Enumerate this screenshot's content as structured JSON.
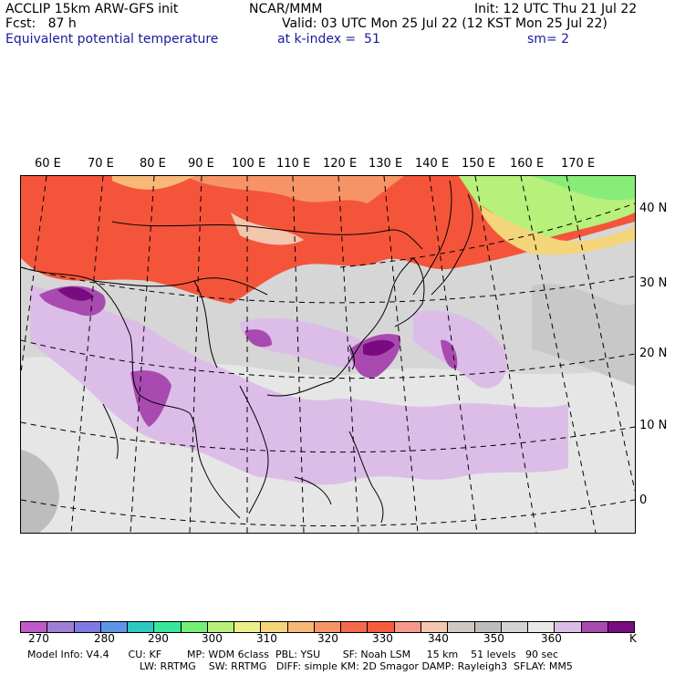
{
  "header": {
    "model": "ACCLIP 15km ARW-GFS init",
    "org": "NCAR/MMM",
    "init": "Init: 12 UTC Thu 21 Jul 22",
    "fcst": "Fcst:   87 h",
    "valid": "Valid: 03 UTC Mon 25 Jul 22 (12 KST Mon 25 Jul 22)",
    "field": "Equivalent potential temperature",
    "level": "at k-index =  51",
    "smooth": "sm= 2"
  },
  "map": {
    "lon_labels": [
      "60 E",
      "70 E",
      "80 E",
      "90 E",
      "100 E",
      "110 E",
      "120 E",
      "130 E",
      "140 E",
      "150 E",
      "160 E",
      "170 E"
    ],
    "lat_labels": [
      "40 N",
      "30 N",
      "20 N",
      "10 N",
      "0"
    ]
  },
  "colorbar": {
    "colors": [
      "#c05ac8",
      "#9f7ed6",
      "#7f79e3",
      "#5f95e6",
      "#2fc8c0",
      "#3ae69b",
      "#76ee76",
      "#b7f07a",
      "#ecf08a",
      "#f5d57a",
      "#f7b878",
      "#f79466",
      "#f46a4a",
      "#f45c3c",
      "#f59a8a",
      "#f3c6ae",
      "#cfc7c2",
      "#bdbdbd",
      "#d3d3d3",
      "#e8e8e8",
      "#dcbde8",
      "#a84ab0",
      "#7a0a80"
    ],
    "ticks": [
      "270",
      "280",
      "290",
      "300",
      "310",
      "320",
      "330",
      "340",
      "350",
      "360"
    ],
    "unit": "K"
  },
  "footer": {
    "line1": "Model Info: V4.4      CU: KF        MP: WDM 6class  PBL: YSU       SF: Noah LSM     15 km    51 levels   90 sec",
    "line2": "LW: RRTMG    SW: RRTMG   DIFF: simple KM: 2D Smagor DAMP: Rayleigh3  SFLAY: MM5"
  }
}
